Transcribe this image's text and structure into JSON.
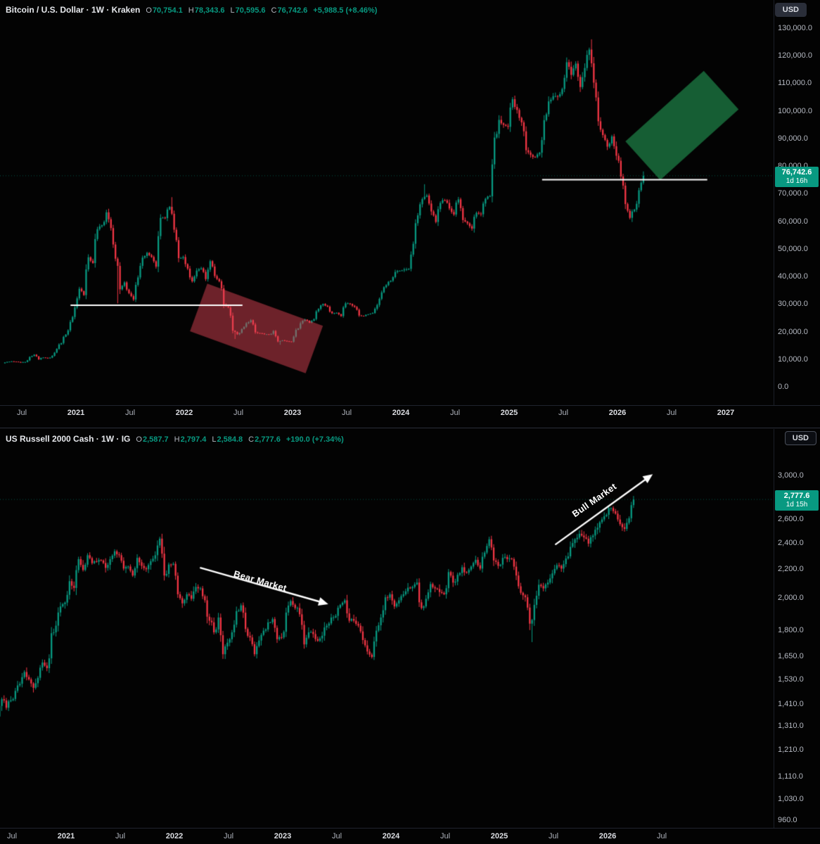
{
  "chart_data": [
    {
      "type": "candlestick",
      "title": "Bitcoin / U.S. Dollar · 1W · Kraken",
      "symbol": "Bitcoin / U.S. Dollar",
      "interval": "1W",
      "exchange": "Kraken",
      "currency": "USD",
      "header": {
        "o_label": "O",
        "o": "70,754.1",
        "h_label": "H",
        "h": "78,343.6",
        "l_label": "L",
        "l": "70,595.6",
        "c_label": "C",
        "c": "76,742.6",
        "change": "+5,988.5 (+8.46%)"
      },
      "price_badge": {
        "price": "76,742.6",
        "countdown": "1d 16h",
        "value": 76742.6
      },
      "y_scale": "linear",
      "ylim": [
        0,
        133000
      ],
      "x_range_note": "half-month close anchors from May 2020 to Apr 2026",
      "y_ticks": [
        {
          "label": "130,000.0",
          "value": 130000
        },
        {
          "label": "120,000.0",
          "value": 120000
        },
        {
          "label": "110,000.0",
          "value": 110000
        },
        {
          "label": "100,000.0",
          "value": 100000
        },
        {
          "label": "90,000.0",
          "value": 90000
        },
        {
          "label": "80,000.0",
          "value": 80000
        },
        {
          "label": "70,000.0",
          "value": 70000
        },
        {
          "label": "60,000.0",
          "value": 60000
        },
        {
          "label": "50,000.0",
          "value": 50000
        },
        {
          "label": "40,000.0",
          "value": 40000
        },
        {
          "label": "30,000.0",
          "value": 30000
        },
        {
          "label": "20,000.0",
          "value": 20000
        },
        {
          "label": "10,000.0",
          "value": 10000
        },
        {
          "label": "0.0",
          "value": 0
        }
      ],
      "x_ticks": [
        {
          "label": "Jul",
          "i": 4,
          "major": false
        },
        {
          "label": "2021",
          "i": 16,
          "major": true
        },
        {
          "label": "Jul",
          "i": 28,
          "major": false
        },
        {
          "label": "2022",
          "i": 40,
          "major": true
        },
        {
          "label": "Jul",
          "i": 52,
          "major": false
        },
        {
          "label": "2023",
          "i": 64,
          "major": true
        },
        {
          "label": "Jul",
          "i": 76,
          "major": false
        },
        {
          "label": "2024",
          "i": 88,
          "major": true
        },
        {
          "label": "Jul",
          "i": 100,
          "major": false
        },
        {
          "label": "2025",
          "i": 112,
          "major": true
        },
        {
          "label": "Jul",
          "i": 124,
          "major": false
        },
        {
          "label": "2026",
          "i": 136,
          "major": true
        },
        {
          "label": "Jul",
          "i": 148,
          "major": false
        },
        {
          "label": "2027",
          "i": 160,
          "major": true
        }
      ],
      "closes": [
        8800,
        9300,
        9500,
        9400,
        9100,
        9250,
        11100,
        11900,
        10200,
        10900,
        10600,
        11500,
        14000,
        16100,
        19200,
        23800,
        29000,
        35800,
        33500,
        47200,
        45100,
        57400,
        58800,
        63500,
        57800,
        46700,
        35600,
        38100,
        34200,
        31900,
        39900,
        47100,
        48800,
        47300,
        43800,
        61500,
        61400,
        65500,
        57200,
        46900,
        47300,
        43100,
        38500,
        42400,
        43200,
        39300,
        45800,
        40400,
        38500,
        30100,
        29000,
        20600,
        19300,
        21200,
        23300,
        24400,
        20000,
        19700,
        19300,
        19150,
        20500,
        16700,
        17100,
        16800,
        16600,
        20900,
        23300,
        24600,
        23500,
        24800,
        28500,
        30300,
        29300,
        26900,
        27100,
        25900,
        30500,
        30300,
        29200,
        26100,
        25900,
        26550,
        27000,
        29900,
        34500,
        37100,
        38700,
        41900,
        42300,
        42800,
        43000,
        52100,
        62400,
        68300,
        69600,
        63800,
        60000,
        66900,
        67800,
        64900,
        62700,
        68200,
        60700,
        59500,
        57600,
        63300,
        62800,
        68400,
        69300,
        90600,
        97000,
        95200,
        94500,
        104500,
        100600,
        96100,
        86000,
        84300,
        83500,
        85100,
        96900,
        103700,
        105600,
        105500,
        108200,
        117900,
        113300,
        117400,
        108900,
        115800,
        122500,
        110500,
        96500,
        91500,
        87300,
        91000,
        84000,
        76500,
        66500,
        61500,
        64500,
        71500,
        76742.6
      ],
      "spikes": [
        {
          "i": 23,
          "high": 64800
        },
        {
          "i": 25,
          "low": 30500
        },
        {
          "i": 37,
          "high": 69000
        },
        {
          "i": 51,
          "low": 17600
        },
        {
          "i": 61,
          "low": 15500
        },
        {
          "i": 93,
          "high": 73700
        },
        {
          "i": 130,
          "high": 126200
        },
        {
          "i": 139,
          "low": 60000
        },
        {
          "i": 141.6,
          "high": 78343.6
        }
      ],
      "annotations": {
        "last_price": 76742.6,
        "hlines": [
          {
            "name": "support-line-2021",
            "price": 29800,
            "i1": 14.8,
            "i2": 52.9,
            "color": "#ffffff"
          },
          {
            "name": "breakout-line-2026",
            "price": 75300,
            "i1": 119.3,
            "i2": 155.9,
            "color": "#ffffff"
          }
        ],
        "boxes": [
          {
            "name": "bear-channel-box",
            "i": 56,
            "price": 21400,
            "w": 175,
            "h": 72,
            "rot": 20,
            "color": "rgba(225,70,85,0.48)"
          },
          {
            "name": "bull-projection-box",
            "i": 150.3,
            "price": 95000,
            "w": 150,
            "h": 74,
            "rot": -42,
            "color": "rgba(35,155,85,0.6)"
          }
        ],
        "arrows": []
      },
      "colors": {
        "up": "#089981",
        "down": "#f23645"
      }
    },
    {
      "type": "candlestick",
      "title": "US Russell 2000 Cash · 1W · IG",
      "symbol": "US Russell 2000 Cash",
      "interval": "1W",
      "exchange": "IG",
      "currency": "USD",
      "header": {
        "o_label": "O",
        "o": "2,587.7",
        "h_label": "H",
        "h": "2,797.4",
        "l_label": "L",
        "l": "2,584.8",
        "c_label": "C",
        "c": "2,777.6",
        "change": "+190.0 (+7.34%)"
      },
      "price_badge": {
        "price": "2,777.6",
        "countdown": "1d 15h",
        "value": 2777.6
      },
      "y_scale": "log",
      "ylim": [
        940,
        3100
      ],
      "x_range_note": "half-month close anchors from May 2020 to Apr 2026",
      "y_ticks": [
        {
          "label": "3,000.0",
          "value": 3000
        },
        {
          "label": "2,600.0",
          "value": 2600
        },
        {
          "label": "2,400.0",
          "value": 2400
        },
        {
          "label": "2,200.0",
          "value": 2200
        },
        {
          "label": "2,000.0",
          "value": 2000
        },
        {
          "label": "1,800.0",
          "value": 1800
        },
        {
          "label": "1,650.0",
          "value": 1650
        },
        {
          "label": "1,530.0",
          "value": 1530
        },
        {
          "label": "1,410.0",
          "value": 1410
        },
        {
          "label": "1,310.0",
          "value": 1310
        },
        {
          "label": "1,210.0",
          "value": 1210
        },
        {
          "label": "1,110.0",
          "value": 1110
        },
        {
          "label": "1,030.0",
          "value": 1030
        },
        {
          "label": "960.0",
          "value": 960
        }
      ],
      "x_ticks": [
        {
          "label": "Jul",
          "i": 4,
          "major": false
        },
        {
          "label": "2021",
          "i": 16,
          "major": true
        },
        {
          "label": "Jul",
          "i": 28,
          "major": false
        },
        {
          "label": "2022",
          "i": 40,
          "major": true
        },
        {
          "label": "Jul",
          "i": 52,
          "major": false
        },
        {
          "label": "2023",
          "i": 64,
          "major": true
        },
        {
          "label": "Jul",
          "i": 76,
          "major": false
        },
        {
          "label": "2024",
          "i": 88,
          "major": true
        },
        {
          "label": "Jul",
          "i": 100,
          "major": false
        },
        {
          "label": "2025",
          "i": 112,
          "major": true
        },
        {
          "label": "Jul",
          "i": 124,
          "major": false
        },
        {
          "label": "2026",
          "i": 136,
          "major": true
        },
        {
          "label": "Jul",
          "i": 148,
          "major": false
        }
      ],
      "closes": [
        1320,
        1355,
        1435,
        1395,
        1430,
        1475,
        1510,
        1570,
        1532,
        1490,
        1540,
        1620,
        1590,
        1785,
        1830,
        1950,
        1975,
        2120,
        2073,
        2280,
        2200,
        2310,
        2250,
        2260,
        2270,
        2215,
        2280,
        2340,
        2310,
        2210,
        2225,
        2160,
        2290,
        2230,
        2205,
        2265,
        2310,
        2440,
        2160,
        2240,
        2245,
        2030,
        1970,
        2030,
        2000,
        2080,
        2070,
        1990,
        1860,
        1790,
        1880,
        1665,
        1730,
        1790,
        1920,
        1957,
        1810,
        1760,
        1665,
        1742,
        1800,
        1850,
        1870,
        1750,
        1760,
        1911,
        1985,
        1940,
        1900,
        1720,
        1790,
        1780,
        1740,
        1770,
        1830,
        1880,
        1890,
        1960,
        1990,
        1860,
        1860,
        1830,
        1745,
        1680,
        1650,
        1800,
        1880,
        2010,
        2030,
        1950,
        1990,
        2030,
        2075,
        2080,
        2110,
        1940,
        2000,
        2100,
        2070,
        2045,
        2030,
        2185,
        2110,
        2165,
        2220,
        2180,
        2225,
        2275,
        2210,
        2330,
        2435,
        2270,
        2230,
        2290,
        2280,
        2280,
        2160,
        2040,
        2010,
        1842,
        1960,
        2095,
        2070,
        2110,
        2175,
        2235,
        2210,
        2285,
        2375,
        2435,
        2480,
        2450,
        2400,
        2465,
        2530,
        2600,
        2640,
        2700,
        2650,
        2560,
        2520,
        2610,
        2777.6
      ],
      "spikes": [
        {
          "i": 37,
          "high": 2458
        },
        {
          "i": 51,
          "low": 1641
        },
        {
          "i": 58,
          "low": 1642
        },
        {
          "i": 84,
          "low": 1634
        },
        {
          "i": 119,
          "low": 1733
        },
        {
          "i": 141.6,
          "high": 2797.4
        }
      ],
      "annotations": {
        "last_price": 2777.6,
        "hlines": [],
        "boxes": [],
        "arrows": [
          {
            "name": "bear-market-arrow",
            "label": "Bear Market",
            "from": {
              "i": 45.8,
              "price": 2215
            },
            "to": {
              "i": 74.1,
              "price": 1965
            },
            "label_at": {
              "i": 59,
              "price": 2120
            },
            "label_rot": 16
          },
          {
            "name": "bull-market-arrow",
            "label": "Bull Market",
            "from": {
              "i": 124.5,
              "price": 2395
            },
            "to": {
              "i": 146,
              "price": 3020
            },
            "label_at": {
              "i": 133,
              "price": 2770
            },
            "label_rot": -35
          }
        ]
      },
      "colors": {
        "up": "#089981",
        "down": "#f23645"
      }
    }
  ]
}
